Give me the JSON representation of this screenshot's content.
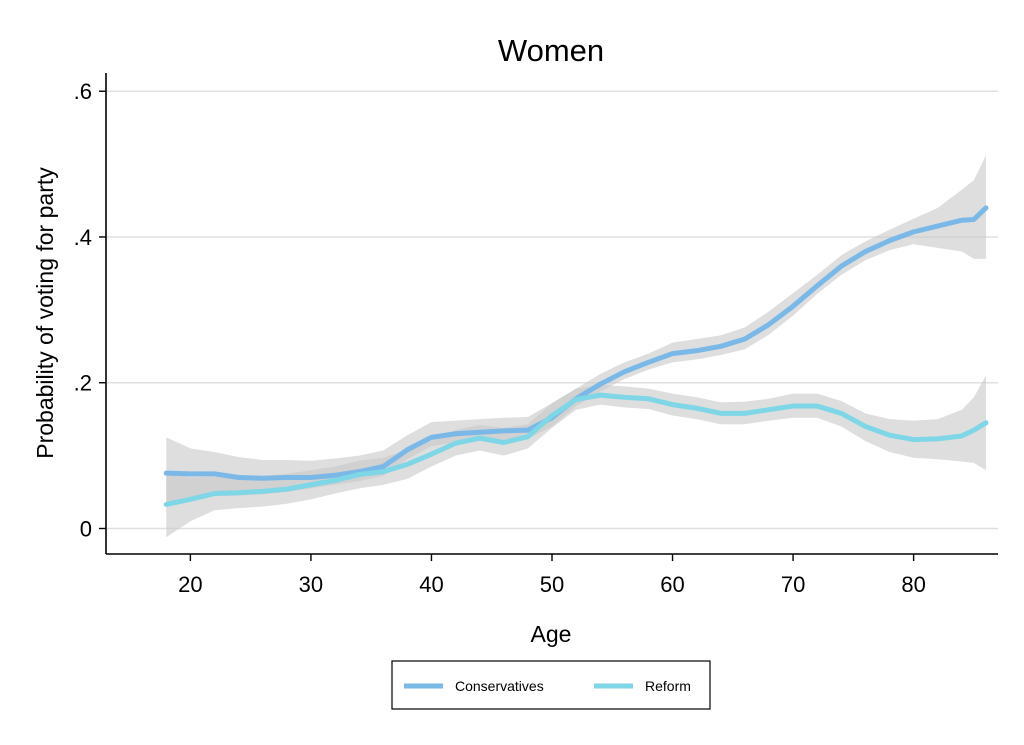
{
  "chart_data": {
    "type": "line",
    "title": "Women",
    "xlabel": "Age",
    "ylabel": "Probability of voting for party",
    "xlim": [
      13,
      87
    ],
    "ylim": [
      -0.035,
      0.625
    ],
    "xticks": [
      20,
      30,
      40,
      50,
      60,
      70,
      80
    ],
    "xtick_labels": [
      "20",
      "30",
      "40",
      "50",
      "60",
      "70",
      "80"
    ],
    "yticks": [
      0,
      0.2,
      0.4,
      0.6
    ],
    "ytick_labels": [
      "0",
      ".2",
      ".4",
      ".6"
    ],
    "grid": true,
    "legend_position": "bottom",
    "x": [
      18,
      20,
      22,
      24,
      26,
      28,
      30,
      32,
      34,
      36,
      38,
      40,
      42,
      44,
      46,
      48,
      50,
      52,
      54,
      56,
      58,
      60,
      62,
      64,
      66,
      68,
      70,
      72,
      74,
      76,
      78,
      80,
      82,
      84,
      85,
      86
    ],
    "series": [
      {
        "name": "Conservatives",
        "color": "#7ab8e8",
        "values": [
          0.076,
          0.075,
          0.075,
          0.07,
          0.069,
          0.07,
          0.07,
          0.073,
          0.078,
          0.085,
          0.108,
          0.125,
          0.13,
          0.132,
          0.134,
          0.135,
          0.152,
          0.178,
          0.198,
          0.215,
          0.228,
          0.24,
          0.244,
          0.25,
          0.26,
          0.28,
          0.305,
          0.333,
          0.36,
          0.38,
          0.395,
          0.407,
          0.415,
          0.423,
          0.424,
          0.44
        ],
        "ci_lower": [
          0.03,
          0.04,
          0.045,
          0.045,
          0.047,
          0.05,
          0.055,
          0.06,
          0.065,
          0.072,
          0.095,
          0.113,
          0.118,
          0.12,
          0.122,
          0.123,
          0.14,
          0.168,
          0.188,
          0.205,
          0.218,
          0.228,
          0.232,
          0.238,
          0.246,
          0.266,
          0.292,
          0.322,
          0.348,
          0.368,
          0.382,
          0.39,
          0.385,
          0.38,
          0.37,
          0.37
        ],
        "ci_upper": [
          0.125,
          0.11,
          0.105,
          0.098,
          0.094,
          0.094,
          0.093,
          0.096,
          0.1,
          0.107,
          0.128,
          0.146,
          0.148,
          0.15,
          0.152,
          0.153,
          0.172,
          0.192,
          0.212,
          0.228,
          0.24,
          0.255,
          0.26,
          0.265,
          0.276,
          0.298,
          0.323,
          0.348,
          0.375,
          0.394,
          0.41,
          0.425,
          0.44,
          0.465,
          0.478,
          0.512
        ]
      },
      {
        "name": "Reform",
        "color": "#7fd6e6",
        "values": [
          0.033,
          0.04,
          0.048,
          0.049,
          0.051,
          0.054,
          0.06,
          0.066,
          0.074,
          0.078,
          0.088,
          0.102,
          0.117,
          0.124,
          0.118,
          0.126,
          0.155,
          0.177,
          0.183,
          0.18,
          0.178,
          0.17,
          0.165,
          0.158,
          0.158,
          0.163,
          0.168,
          0.168,
          0.158,
          0.14,
          0.128,
          0.122,
          0.123,
          0.127,
          0.135,
          0.145
        ],
        "ci_lower": [
          -0.012,
          0.01,
          0.025,
          0.028,
          0.03,
          0.034,
          0.04,
          0.048,
          0.055,
          0.06,
          0.068,
          0.085,
          0.1,
          0.107,
          0.1,
          0.11,
          0.138,
          0.163,
          0.17,
          0.166,
          0.164,
          0.155,
          0.15,
          0.143,
          0.143,
          0.148,
          0.152,
          0.152,
          0.14,
          0.12,
          0.105,
          0.097,
          0.095,
          0.092,
          0.09,
          0.08
        ],
        "ci_upper": [
          0.078,
          0.07,
          0.071,
          0.07,
          0.072,
          0.075,
          0.08,
          0.085,
          0.093,
          0.097,
          0.108,
          0.12,
          0.135,
          0.142,
          0.138,
          0.143,
          0.172,
          0.192,
          0.197,
          0.195,
          0.192,
          0.185,
          0.18,
          0.173,
          0.174,
          0.178,
          0.185,
          0.185,
          0.175,
          0.158,
          0.15,
          0.148,
          0.15,
          0.163,
          0.18,
          0.21
        ]
      }
    ]
  },
  "colors": {
    "ci_band": "#c8c8c8",
    "grid": "#e0e0e0",
    "axis": "#000000"
  }
}
